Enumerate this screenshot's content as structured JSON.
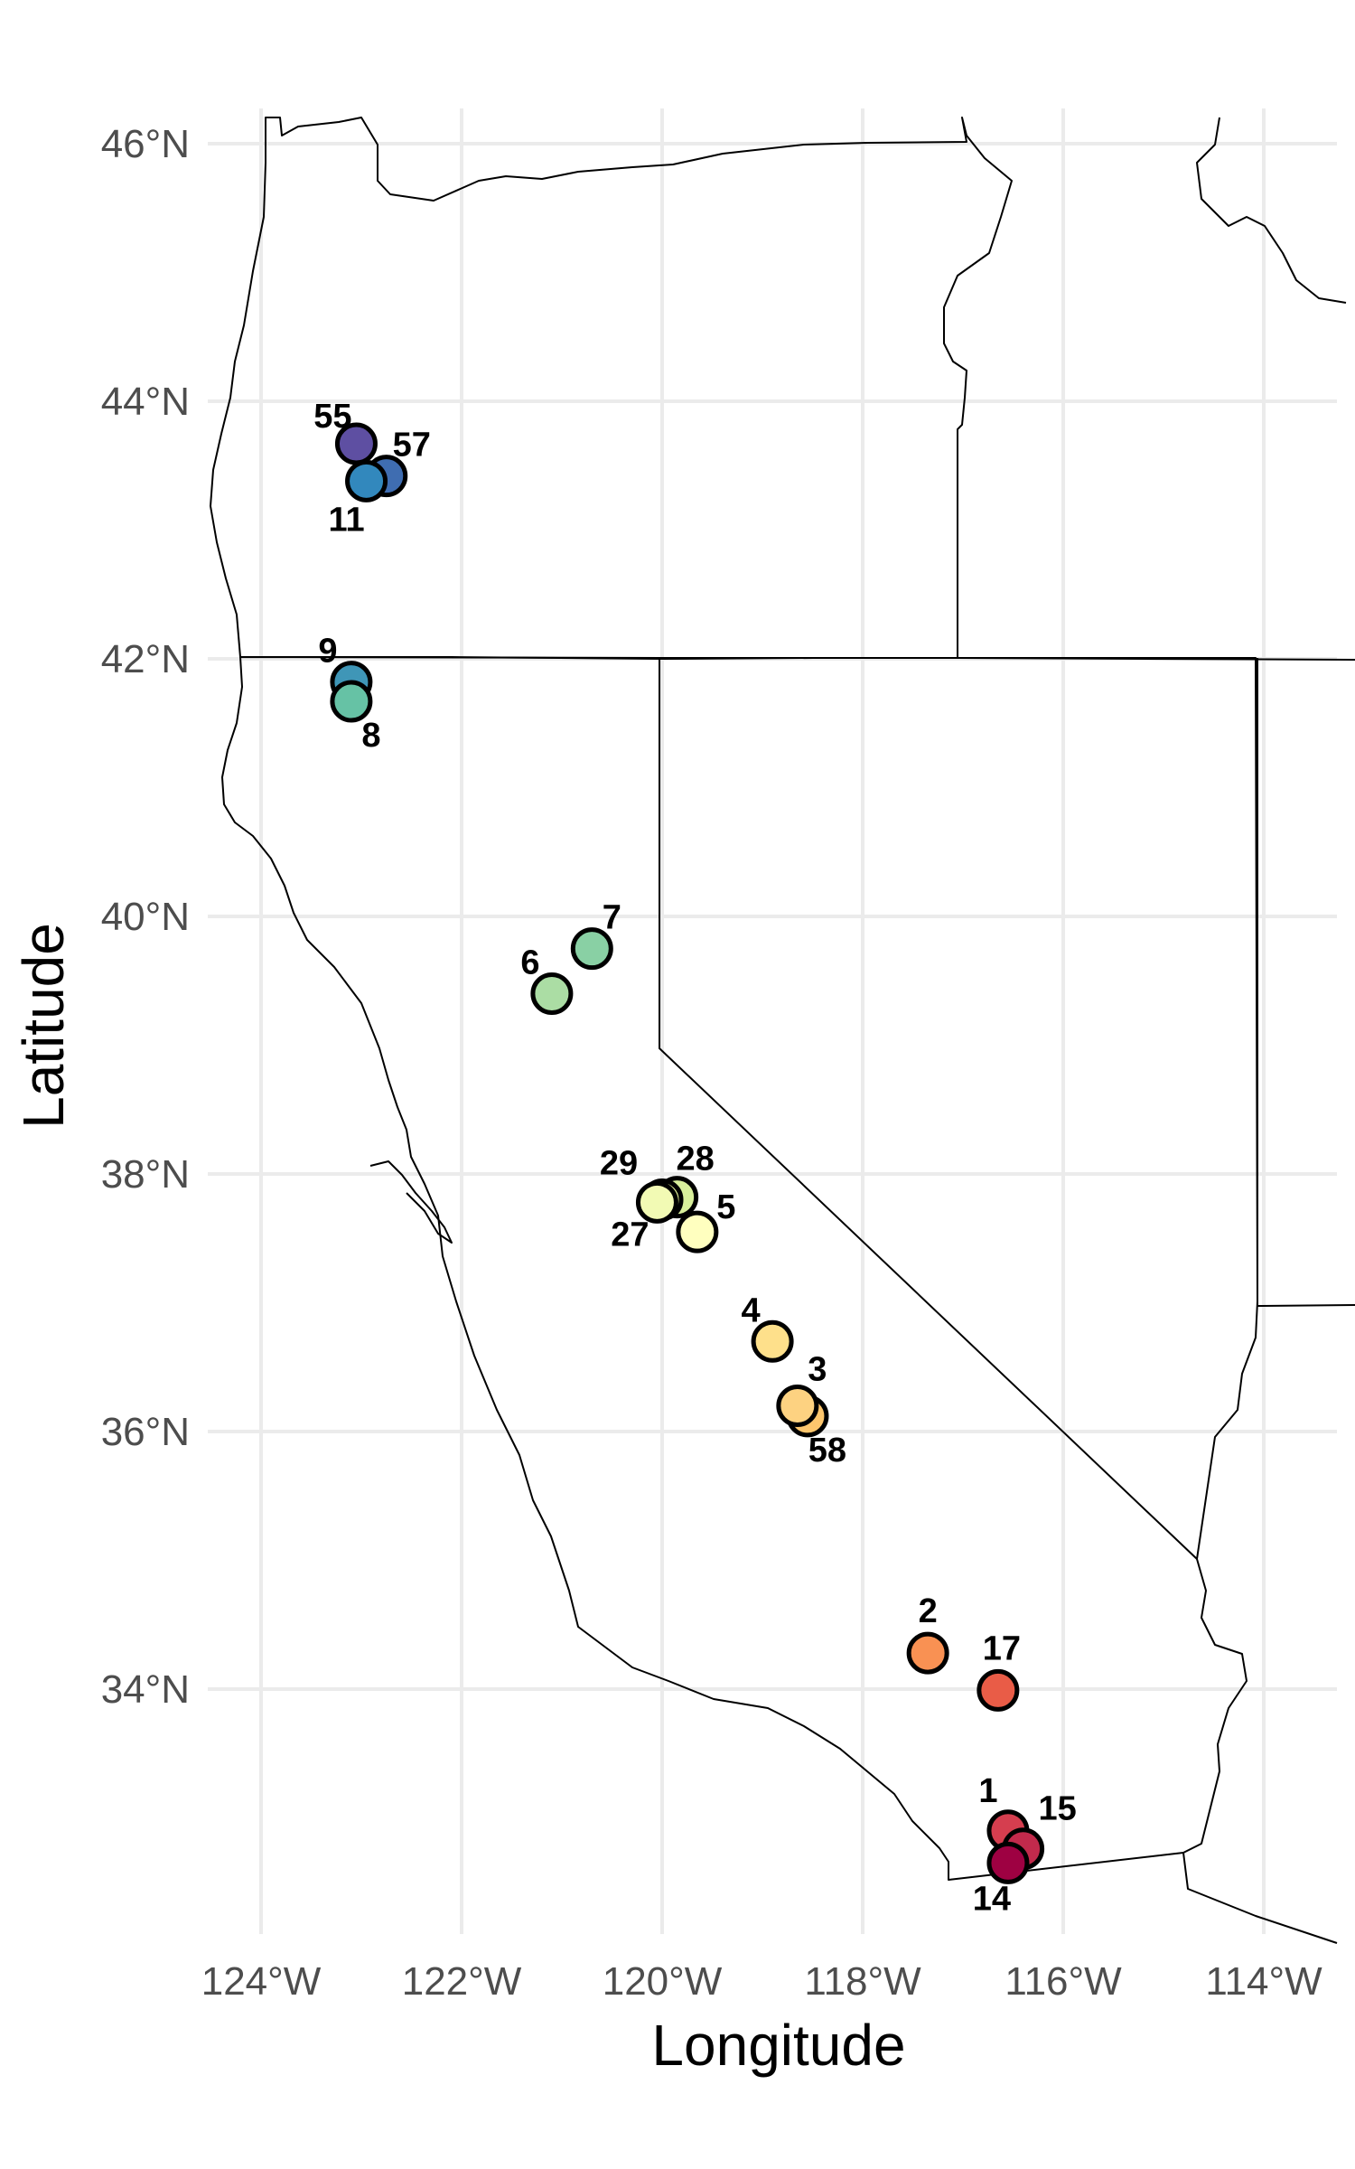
{
  "map": {
    "xlabel": "Longitude",
    "ylabel": "Latitude",
    "x_ticks": [
      "124°W",
      "122°W",
      "120°W",
      "118°W",
      "116°W",
      "114°W"
    ],
    "y_ticks": [
      "46°N",
      "44°N",
      "42°N",
      "40°N",
      "38°N",
      "36°N",
      "34°N"
    ],
    "x_tick_values": [
      -124,
      -122,
      -120,
      -118,
      -116,
      -114
    ],
    "y_tick_values": [
      46,
      44,
      42,
      40,
      38,
      36,
      34
    ],
    "xlim": [
      -124.5,
      -113.3
    ],
    "ylim": [
      32.2,
      46.5
    ],
    "grid": true,
    "point_fill_palette": "spectral (purple at north to red at south)"
  },
  "sites": [
    {
      "label": "55",
      "lon": -123.05,
      "lat": 43.67,
      "color": "#5e4fa2"
    },
    {
      "label": "57",
      "lon": -122.75,
      "lat": 43.42,
      "color": "#3f6db1"
    },
    {
      "label": "11",
      "lon": -122.95,
      "lat": 43.38,
      "color": "#3288bd"
    },
    {
      "label": "9",
      "lon": -123.1,
      "lat": 41.82,
      "color": "#3f96b7"
    },
    {
      "label": "8",
      "lon": -123.1,
      "lat": 41.67,
      "color": "#66c2a5"
    },
    {
      "label": "7",
      "lon": -120.7,
      "lat": 39.75,
      "color": "#89d0a4"
    },
    {
      "label": "6",
      "lon": -121.1,
      "lat": 39.4,
      "color": "#abdda4"
    },
    {
      "label": "28",
      "lon": -119.85,
      "lat": 37.82,
      "color": "#d8ef9b"
    },
    {
      "label": "29",
      "lon": -120.0,
      "lat": 37.8,
      "color": "#e6f598"
    },
    {
      "label": "27",
      "lon": -120.05,
      "lat": 37.78,
      "color": "#f2fab4"
    },
    {
      "label": "5",
      "lon": -119.65,
      "lat": 37.55,
      "color": "#ffffbf"
    },
    {
      "label": "4",
      "lon": -118.9,
      "lat": 36.7,
      "color": "#fee08b"
    },
    {
      "label": "58",
      "lon": -118.55,
      "lat": 36.12,
      "color": "#fdc66d"
    },
    {
      "label": "3",
      "lon": -118.65,
      "lat": 36.2,
      "color": "#fdd281"
    },
    {
      "label": "2",
      "lon": -117.35,
      "lat": 34.28,
      "color": "#f99153"
    },
    {
      "label": "17",
      "lon": -116.65,
      "lat": 33.99,
      "color": "#e95c47"
    },
    {
      "label": "1",
      "lon": -116.55,
      "lat": 32.9,
      "color": "#d53e4f"
    },
    {
      "label": "15",
      "lon": -116.4,
      "lat": 32.76,
      "color": "#c22a4c"
    },
    {
      "label": "14",
      "lon": -116.55,
      "lat": 32.65,
      "color": "#9e0142"
    }
  ]
}
